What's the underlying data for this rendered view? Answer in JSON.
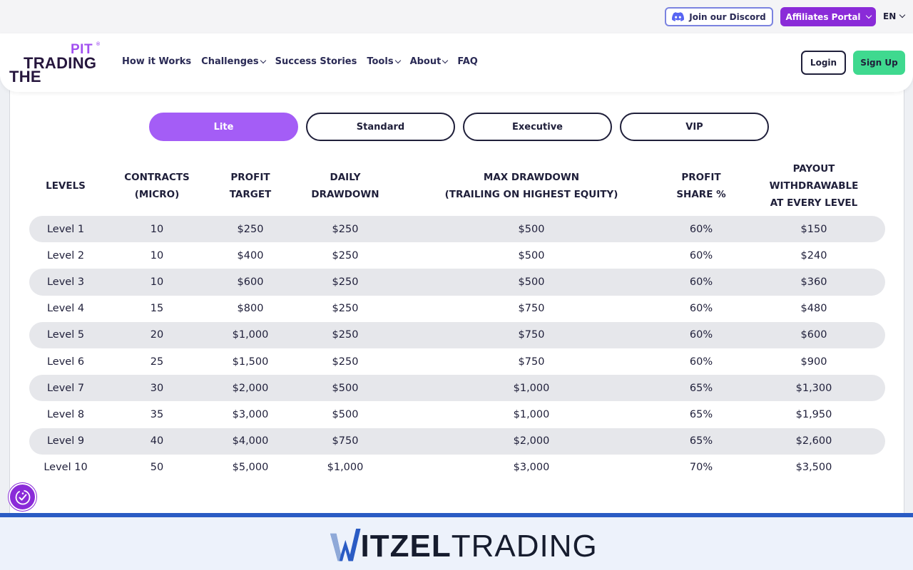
{
  "topbar": {
    "discord_label": "Join our Discord",
    "affiliates_label": "Affiliates Portal",
    "language": "EN"
  },
  "logo": {
    "line1": "PIT",
    "line2": "TRADING",
    "line3": "THE",
    "reg": "®"
  },
  "nav": {
    "items": [
      {
        "label": "How it Works",
        "dropdown": false
      },
      {
        "label": "Challenges",
        "dropdown": true
      },
      {
        "label": "Success Stories",
        "dropdown": false
      },
      {
        "label": "Tools",
        "dropdown": true
      },
      {
        "label": "About",
        "dropdown": true
      },
      {
        "label": "FAQ",
        "dropdown": false
      }
    ],
    "login_label": "Login",
    "signup_label": "Sign Up"
  },
  "tabs": [
    {
      "label": "Lite",
      "active": true
    },
    {
      "label": "Standard",
      "active": false
    },
    {
      "label": "Executive",
      "active": false
    },
    {
      "label": "VIP",
      "active": false
    }
  ],
  "table": {
    "headers": [
      "LEVELS",
      "CONTRACTS\n(MICRO)",
      "PROFIT\nTARGET",
      "DAILY\nDRAWDOWN",
      "MAX DRAWDOWN\n(TRAILING ON HIGHEST EQUITY)",
      "PROFIT\nSHARE %",
      "PAYOUT\nWITHDRAWABLE\nAT EVERY LEVEL"
    ],
    "rows": [
      [
        "Level 1",
        "10",
        "$250",
        "$250",
        "$500",
        "60%",
        "$150"
      ],
      [
        "Level 2",
        "10",
        "$400",
        "$250",
        "$500",
        "60%",
        "$240"
      ],
      [
        "Level 3",
        "10",
        "$600",
        "$250",
        "$500",
        "60%",
        "$360"
      ],
      [
        "Level 4",
        "15",
        "$800",
        "$250",
        "$750",
        "60%",
        "$480"
      ],
      [
        "Level 5",
        "20",
        "$1,000",
        "$250",
        "$750",
        "60%",
        "$600"
      ],
      [
        "Level 6",
        "25",
        "$1,500",
        "$250",
        "$750",
        "60%",
        "$900"
      ],
      [
        "Level 7",
        "30",
        "$2,000",
        "$500",
        "$1,000",
        "65%",
        "$1,300"
      ],
      [
        "Level 8",
        "35",
        "$3,000",
        "$500",
        "$1,000",
        "65%",
        "$1,950"
      ],
      [
        "Level 9",
        "40",
        "$4,000",
        "$750",
        "$2,000",
        "65%",
        "$2,600"
      ],
      [
        "Level 10",
        "50",
        "$5,000",
        "$1,000",
        "$3,000",
        "70%",
        "$3,500"
      ]
    ]
  },
  "footer": {
    "brand_w": "W",
    "brand_bold": "ITZEL",
    "brand_light": "TRADING"
  },
  "icons": {
    "discord": "discord-icon",
    "accessibility": "accessibility-icon",
    "chevron": "chevron-down-icon"
  },
  "colors": {
    "accent_purple": "#a45df6",
    "affiliates_purple": "#8a2bd8",
    "signup_green": "#3fd98f",
    "row_shade": "#e6e7eb",
    "footer_blue": "#2a5bc4"
  }
}
